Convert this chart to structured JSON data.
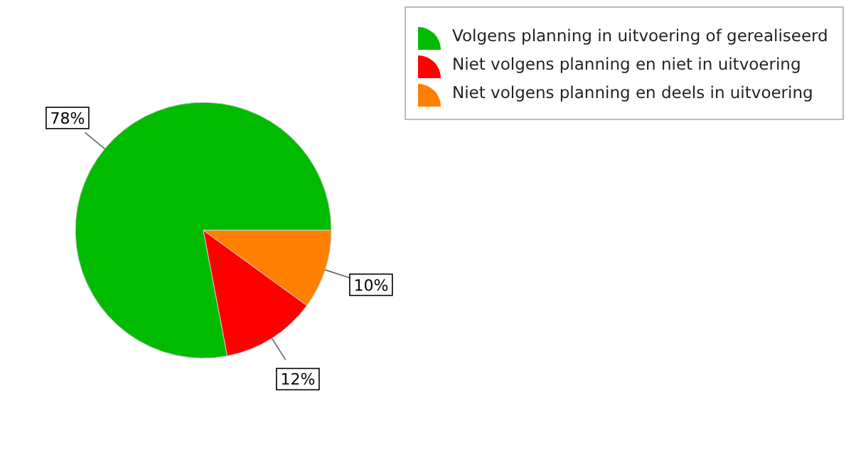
{
  "chart_data": {
    "type": "pie",
    "categories": [
      "Volgens planning in uitvoering of gerealiseerd",
      "Niet volgens planning en niet in uitvoering",
      "Niet volgens planning en deels in uitvoering"
    ],
    "values": [
      78,
      12,
      10
    ],
    "value_labels": [
      "78%",
      "12%",
      "10%"
    ],
    "colors": [
      "#00bb00",
      "#ff0000",
      "#ff8000"
    ],
    "legend": "top right"
  }
}
